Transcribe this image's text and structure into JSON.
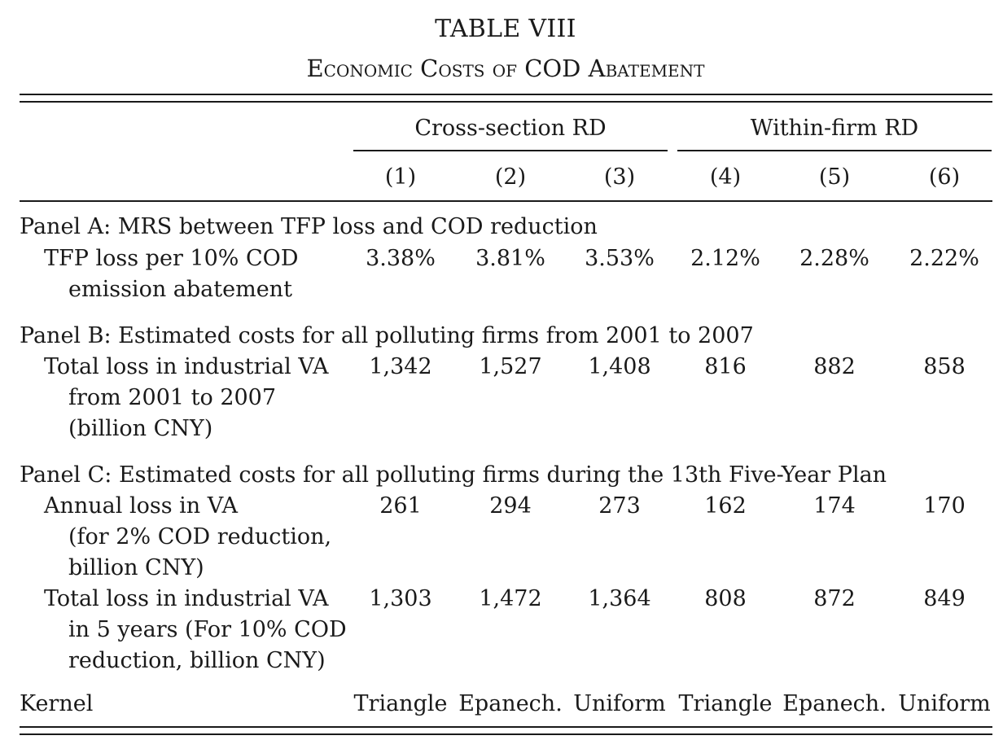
{
  "table": {
    "title": "TABLE VIII",
    "subtitle": "Economic Costs of COD Abatement",
    "groups": [
      "Cross-section RD",
      "Within-firm RD"
    ],
    "columns": [
      "(1)",
      "(2)",
      "(3)",
      "(4)",
      "(5)",
      "(6)"
    ],
    "panels": [
      {
        "heading": "Panel A: MRS between TFP loss and COD reduction",
        "rows": [
          {
            "label": [
              "TFP loss per 10% COD",
              "emission abatement"
            ],
            "values": [
              "3.38%",
              "3.81%",
              "3.53%",
              "2.12%",
              "2.28%",
              "2.22%"
            ]
          }
        ]
      },
      {
        "heading": "Panel B: Estimated costs for all polluting firms from 2001 to 2007",
        "rows": [
          {
            "label": [
              "Total loss in industrial VA",
              "from 2001 to 2007",
              "(billion CNY)"
            ],
            "values": [
              "1,342",
              "1,527",
              "1,408",
              "816",
              "882",
              "858"
            ]
          }
        ]
      },
      {
        "heading": "Panel C: Estimated costs for all polluting firms during the 13th Five-Year Plan",
        "rows": [
          {
            "label": [
              "Annual loss in VA",
              "(for 2% COD reduction,",
              "billion CNY)"
            ],
            "values": [
              "261",
              "294",
              "273",
              "162",
              "174",
              "170"
            ]
          },
          {
            "label": [
              "Total loss in industrial VA",
              "in 5 years (For 10% COD",
              "reduction, billion CNY)"
            ],
            "values": [
              "1,303",
              "1,472",
              "1,364",
              "808",
              "872",
              "849"
            ]
          }
        ]
      }
    ],
    "kernel": {
      "label": "Kernel",
      "values": [
        "Triangle",
        "Epanech.",
        "Uniform",
        "Triangle",
        "Epanech.",
        "Uniform"
      ]
    }
  }
}
